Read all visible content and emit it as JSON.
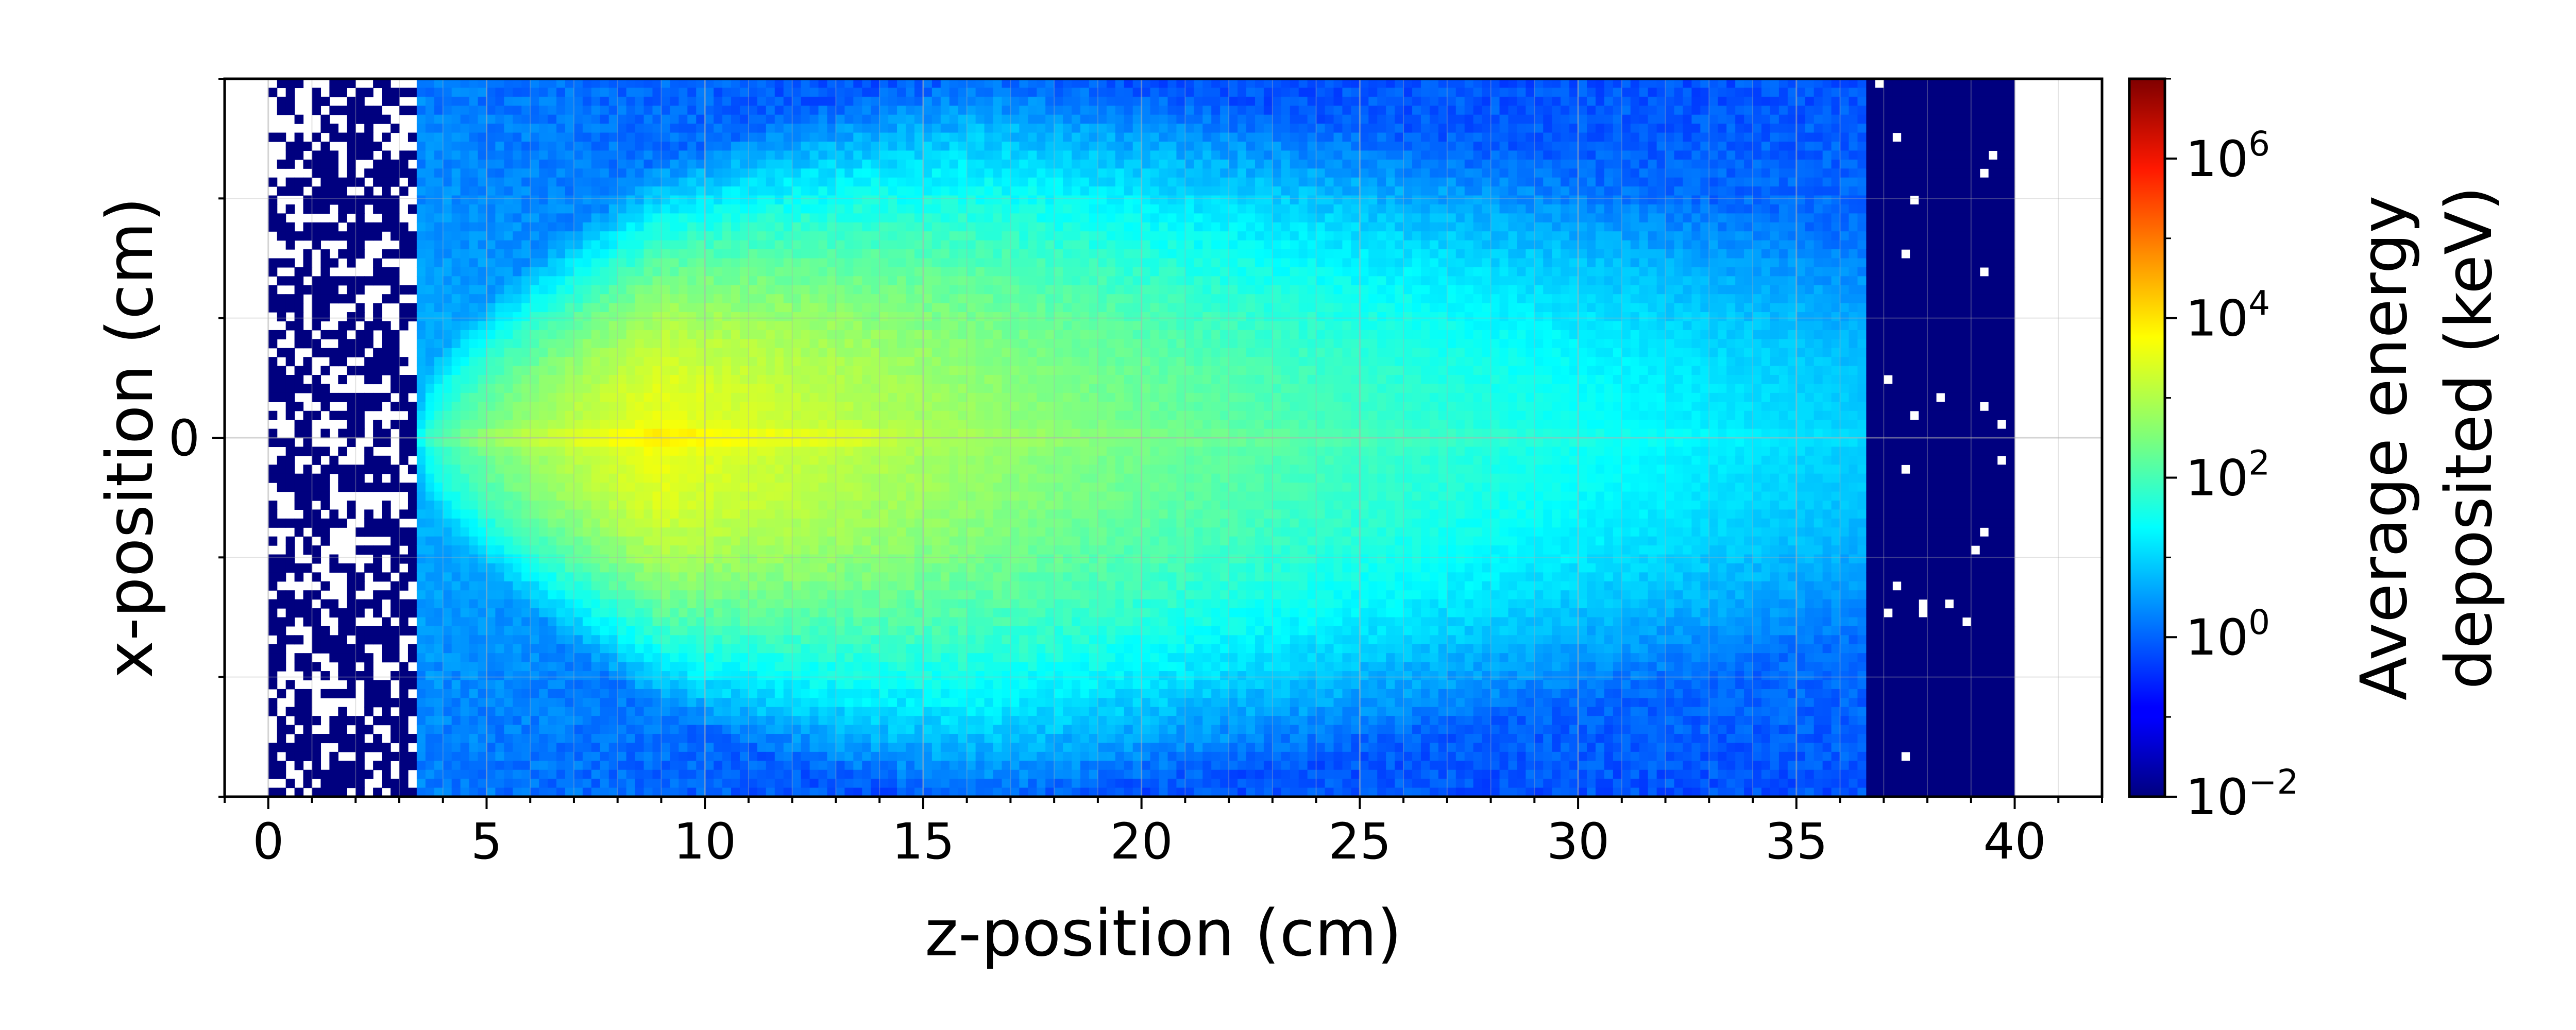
{
  "chart_data": {
    "type": "heatmap",
    "title": "",
    "xlabel": "z-position (cm)",
    "ylabel": "x-position (cm)",
    "xlim": [
      -1,
      42
    ],
    "x_ticks": [
      0,
      5,
      10,
      15,
      20,
      25,
      30,
      35,
      40
    ],
    "x_tick_labels": [
      "0",
      "5",
      "10",
      "15",
      "20",
      "25",
      "30",
      "35",
      "40"
    ],
    "y_ticks": [
      0
    ],
    "y_tick_labels": [
      "0"
    ],
    "grid": true,
    "colormap": "jet",
    "log_scale": true,
    "colorbar": {
      "label_line1": "Average energy",
      "label_line2": "deposited (keV)",
      "range": [
        0.01,
        10000000
      ],
      "ticks": [
        {
          "value": 0.01,
          "base": "10",
          "exp": "−2"
        },
        {
          "value": 1,
          "base": "10",
          "exp": "0"
        },
        {
          "value": 100,
          "base": "10",
          "exp": "2"
        },
        {
          "value": 10000,
          "base": "10",
          "exp": "4"
        },
        {
          "value": 1000000,
          "base": "10",
          "exp": "6"
        }
      ]
    },
    "regions": {
      "data_z_range": [
        0,
        40
      ],
      "sparse_entry_region_z": [
        0,
        3.5
      ],
      "beam_entry_z": 3.5,
      "peak_z": 9,
      "peak_value_keV": 3000,
      "phantom_end_z": 36.6,
      "trailing_low_region_z": [
        36.6,
        40
      ]
    }
  },
  "colors": {
    "background": "#ffffff",
    "frame": "#000000",
    "grid": "#b0b0b0",
    "floor": "#00007f"
  }
}
